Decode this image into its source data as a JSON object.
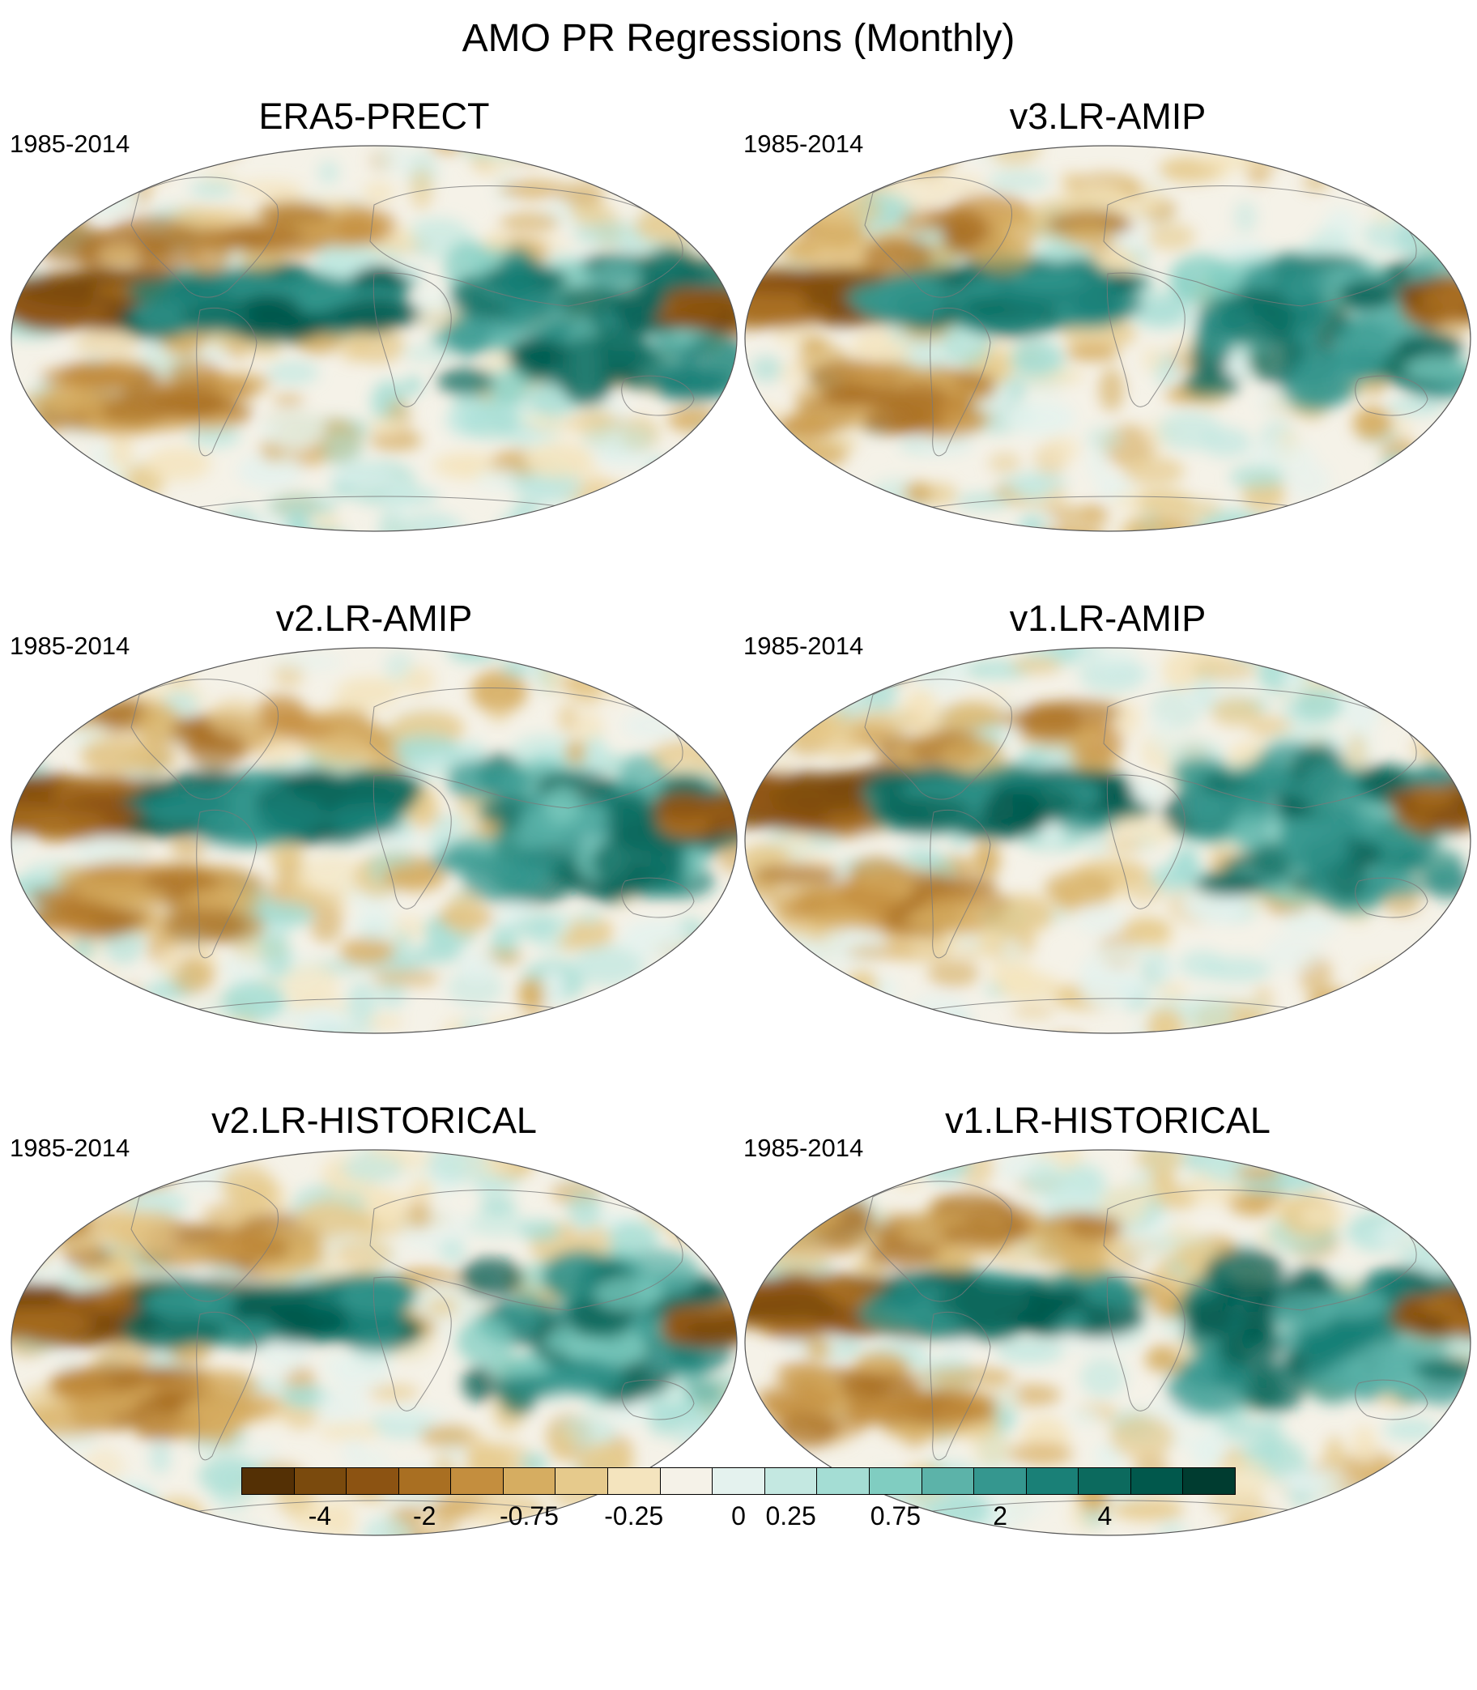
{
  "figure": {
    "title": "AMO PR Regressions (Monthly)"
  },
  "panels": [
    {
      "title": "ERA5-PRECT",
      "period": "1985-2014"
    },
    {
      "title": "v3.LR-AMIP",
      "period": "1985-2014"
    },
    {
      "title": "v2.LR-AMIP",
      "period": "1985-2014"
    },
    {
      "title": "v1.LR-AMIP",
      "period": "1985-2014"
    },
    {
      "title": "v2.LR-HISTORICAL",
      "period": "1985-2014"
    },
    {
      "title": "v1.LR-HISTORICAL",
      "period": "1985-2014"
    }
  ],
  "colorbar": {
    "colors": [
      "#543005",
      "#7a4a0d",
      "#8c5312",
      "#a96f22",
      "#c48e3e",
      "#d6ad61",
      "#e6ca8c",
      "#f4e4be",
      "#f5f2e8",
      "#e4f2ee",
      "#c4e8e1",
      "#a4ddd4",
      "#80cdc1",
      "#5cb3a9",
      "#35978f",
      "#1a8077",
      "#0c6a5e",
      "#01584c",
      "#003c30"
    ],
    "labels": [
      "-4",
      "-2",
      "-0.75",
      "-0.25",
      "0",
      "0.25",
      "0.75",
      "2",
      "4"
    ]
  },
  "chart_data": {
    "type": "heatmap",
    "title": "AMO PR Regressions (Monthly)",
    "projection": "Robinson",
    "variable": "PR regression on AMO index",
    "period": "1985-2014",
    "panels": [
      "ERA5-PRECT",
      "v3.LR-AMIP",
      "v2.LR-AMIP",
      "v1.LR-AMIP",
      "v2.LR-HISTORICAL",
      "v1.LR-HISTORICAL"
    ],
    "colorbar_ticks": [
      -4,
      -2,
      -0.75,
      -0.25,
      0,
      0.25,
      0.75,
      2,
      4
    ],
    "colorbar_levels": 19,
    "colormap": "brown-to-teal diverging"
  }
}
